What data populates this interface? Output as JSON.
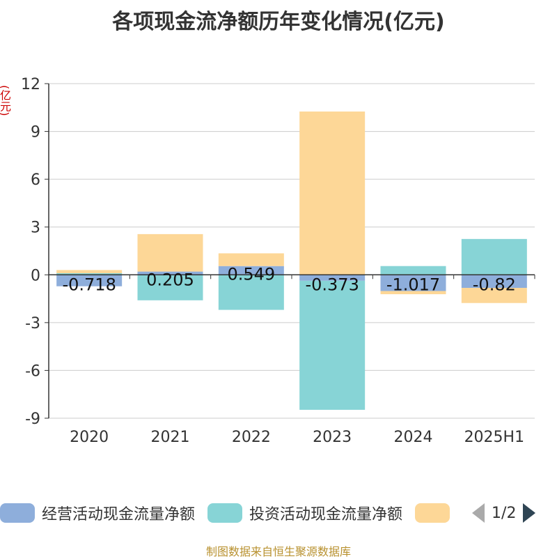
{
  "title": "各项现金流净额历年变化情况(亿元)",
  "unit_label": "(亿元)",
  "source": "制图数据来自恒生聚源数据库",
  "legend_pager": "1/2",
  "chart_data": {
    "type": "bar",
    "stacked": true,
    "categories": [
      "2020",
      "2021",
      "2022",
      "2023",
      "2024",
      "2025H1"
    ],
    "ylim": [
      -9,
      12
    ],
    "yticks": [
      12,
      9,
      6,
      3,
      0,
      -3,
      -6,
      -9
    ],
    "grid": true,
    "legend_position": "bottom",
    "series": [
      {
        "name": "经营活动现金流量净额",
        "color": "#8eaedb",
        "values": [
          -0.718,
          0.205,
          0.549,
          -0.373,
          -1.017,
          -0.82
        ],
        "labels": [
          "-0.718",
          "0.205",
          "0.549",
          "-0.373",
          "-1.017",
          "-0.82"
        ]
      },
      {
        "name": "投资活动现金流量净额",
        "color": "#87d4d6",
        "values": [
          0.1,
          -1.6,
          -2.2,
          -8.1,
          0.55,
          2.25
        ]
      },
      {
        "name": "",
        "color": "#fdd797",
        "values": [
          0.2,
          2.35,
          0.8,
          10.25,
          -0.2,
          -0.95
        ]
      }
    ]
  }
}
